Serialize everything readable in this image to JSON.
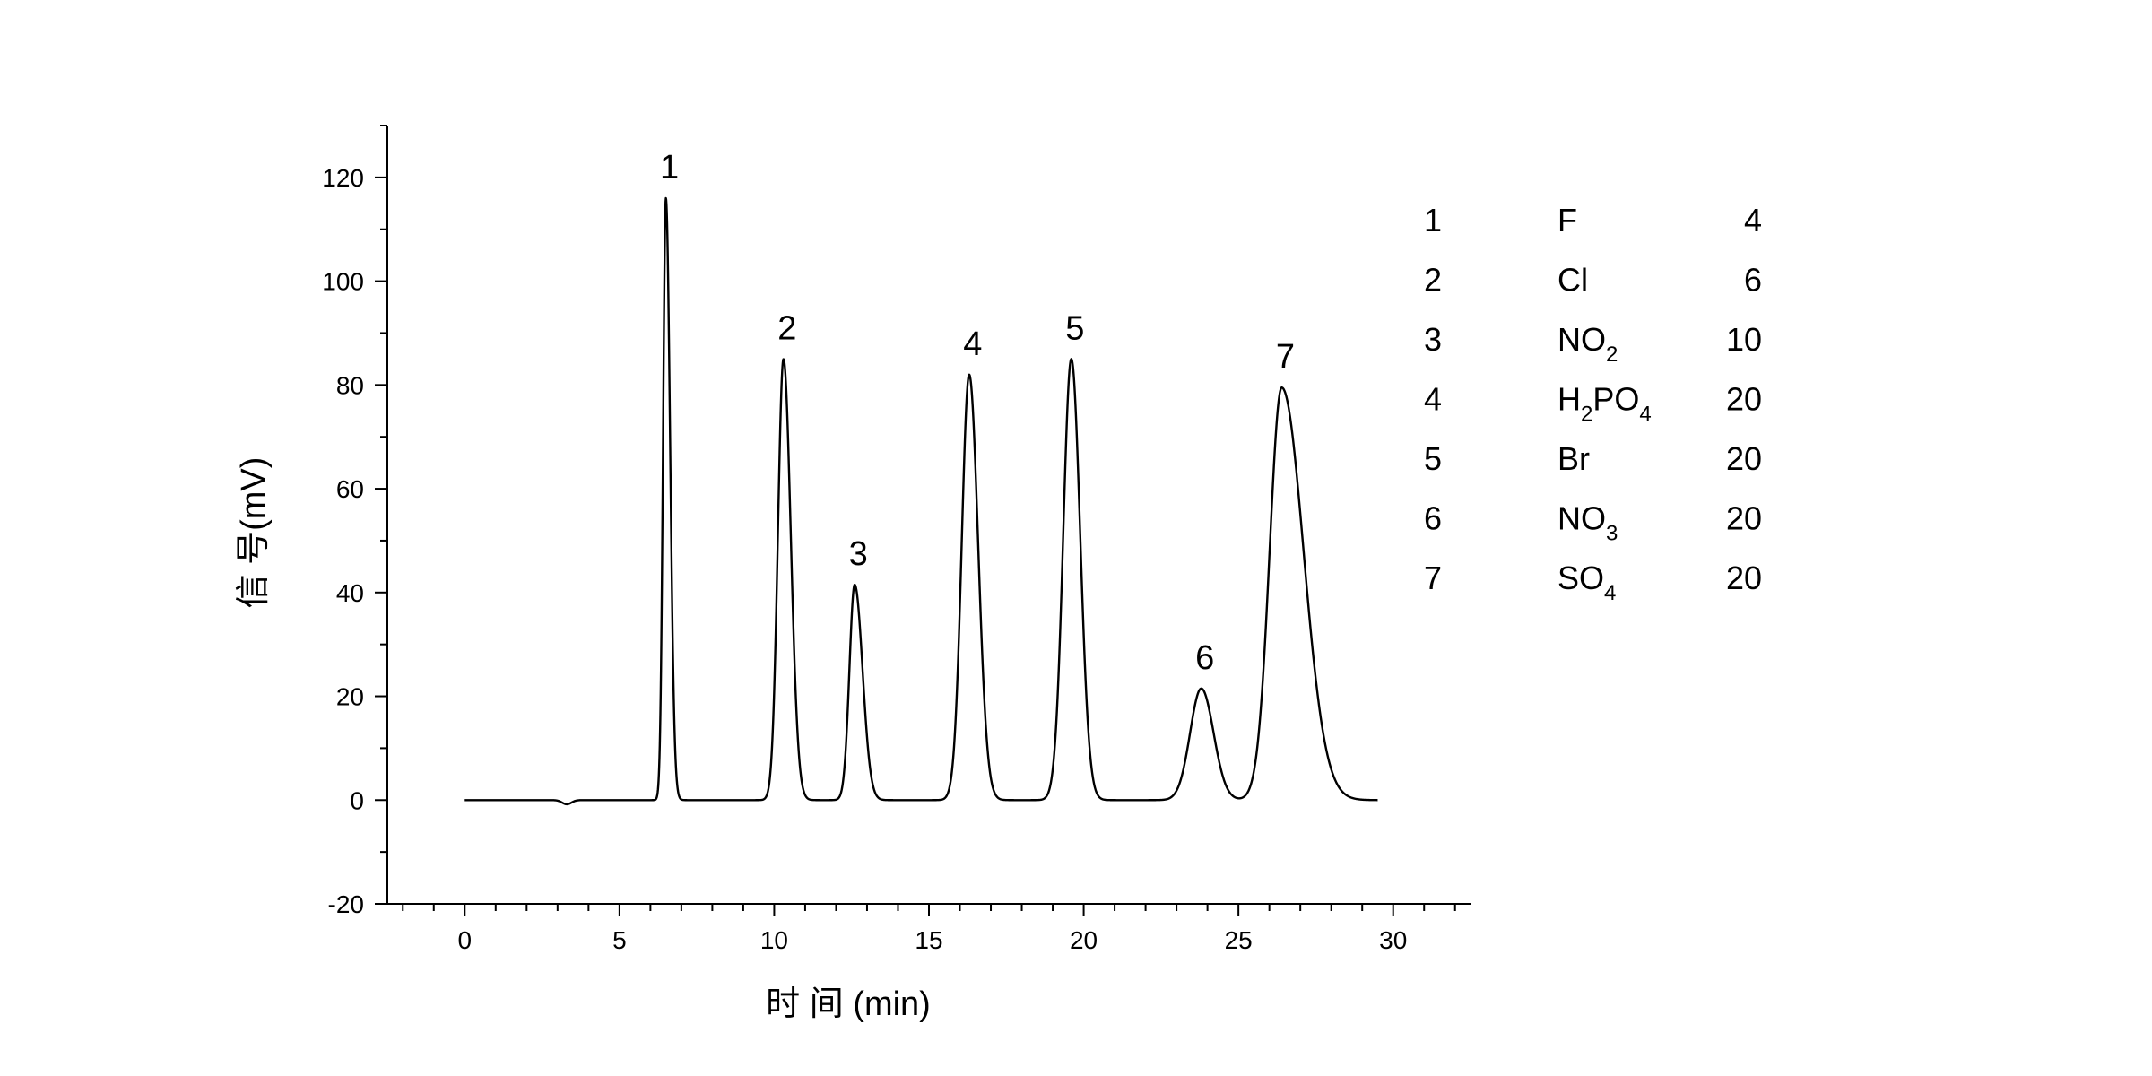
{
  "chart_data": {
    "type": "line",
    "title": "",
    "xlabel": "时 间 (min)",
    "ylabel": "信 号(mV)",
    "xlim": [
      -2.5,
      32.5
    ],
    "ylim": [
      -20,
      130
    ],
    "x_ticks": [
      0,
      5,
      10,
      15,
      20,
      25,
      30
    ],
    "x_minor_step": 1,
    "y_ticks": [
      -20,
      0,
      20,
      40,
      60,
      80,
      100,
      120
    ],
    "y_minor_step": 10,
    "x_range": [
      0,
      29.5
    ],
    "baseline": 0,
    "dip": {
      "x": 3.3,
      "y": -0.8,
      "width": 0.15
    },
    "line_color": "#000000",
    "peaks": [
      {
        "label": "1",
        "x": 6.5,
        "height": 116,
        "width": 0.09,
        "tail": 0.5
      },
      {
        "label": "2",
        "x": 10.3,
        "height": 85,
        "width": 0.18,
        "tail": 0.3
      },
      {
        "label": "3",
        "x": 12.6,
        "height": 41.5,
        "width": 0.17,
        "tail": 0.5
      },
      {
        "label": "4",
        "x": 16.3,
        "height": 82,
        "width": 0.24,
        "tail": 0.2
      },
      {
        "label": "5",
        "x": 19.6,
        "height": 85,
        "width": 0.26,
        "tail": 0.1
      },
      {
        "label": "6",
        "x": 23.8,
        "height": 21.5,
        "width": 0.36,
        "tail": 0.1
      },
      {
        "label": "7",
        "x": 26.4,
        "height": 79.5,
        "width": 0.39,
        "tail": 0.8
      }
    ],
    "legend": {
      "placement": "right",
      "rows": [
        {
          "num": "1",
          "ion": [
            {
              "t": "F"
            }
          ],
          "value": "4"
        },
        {
          "num": "2",
          "ion": [
            {
              "t": "Cl"
            }
          ],
          "value": "6"
        },
        {
          "num": "3",
          "ion": [
            {
              "t": "NO"
            },
            {
              "t": "2",
              "sub": true
            }
          ],
          "value": "10"
        },
        {
          "num": "4",
          "ion": [
            {
              "t": "H"
            },
            {
              "t": "2",
              "sub": true
            },
            {
              "t": "PO"
            },
            {
              "t": "4",
              "sub": true
            }
          ],
          "value": "20"
        },
        {
          "num": "5",
          "ion": [
            {
              "t": "Br"
            }
          ],
          "value": "20"
        },
        {
          "num": "6",
          "ion": [
            {
              "t": "NO"
            },
            {
              "t": "3",
              "sub": true
            }
          ],
          "value": "20"
        },
        {
          "num": "7",
          "ion": [
            {
              "t": "SO"
            },
            {
              "t": "4",
              "sub": true
            }
          ],
          "value": "20"
        }
      ]
    }
  }
}
